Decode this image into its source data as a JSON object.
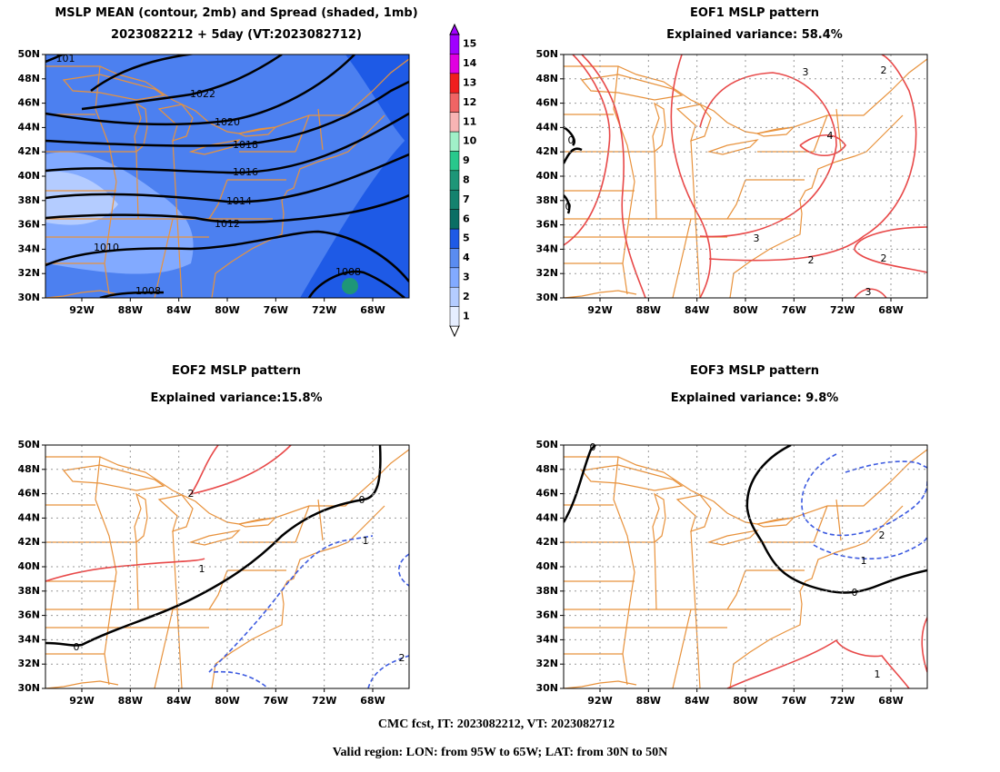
{
  "panels": [
    {
      "title": "MSLP MEAN (contour, 2mb) and Spread (shaded, 1mb)",
      "subtitle": "2023082212 + 5day (VT:2023082712)",
      "grid": false,
      "contour_labels": [
        "101",
        "1022",
        "1020",
        "1018",
        "1016",
        "1014",
        "1012",
        "1010",
        "1008",
        "1008"
      ]
    },
    {
      "title": "EOF1 MSLP pattern",
      "subtitle": "Explained variance: 58.4%",
      "grid": true,
      "contour_labels": [
        "0",
        "0",
        "3",
        "2",
        "4",
        "3",
        "2",
        "2",
        "3"
      ]
    },
    {
      "title": "EOF2 MSLP pattern",
      "subtitle": "Explained variance:15.8%",
      "grid": true,
      "contour_labels": [
        "2",
        "1",
        "0",
        "0",
        "1",
        "2"
      ]
    },
    {
      "title": "EOF3 MSLP pattern",
      "subtitle": "Explained variance: 9.8%",
      "grid": true,
      "contour_labels": [
        "0",
        "0",
        "2",
        "1",
        "1"
      ]
    }
  ],
  "lon_range": [
    -95,
    -65
  ],
  "lat_range": [
    30,
    50
  ],
  "lat_ticks": [
    {
      "value": 30,
      "label": "30N"
    },
    {
      "value": 32,
      "label": "32N"
    },
    {
      "value": 34,
      "label": "34N"
    },
    {
      "value": 36,
      "label": "36N"
    },
    {
      "value": 38,
      "label": "38N"
    },
    {
      "value": 40,
      "label": "40N"
    },
    {
      "value": 42,
      "label": "42N"
    },
    {
      "value": 44,
      "label": "44N"
    },
    {
      "value": 46,
      "label": "46N"
    },
    {
      "value": 48,
      "label": "48N"
    },
    {
      "value": 50,
      "label": "50N"
    }
  ],
  "lon_ticks": [
    {
      "value": -92,
      "label": "92W"
    },
    {
      "value": -88,
      "label": "88W"
    },
    {
      "value": -84,
      "label": "84W"
    },
    {
      "value": -80,
      "label": "80W"
    },
    {
      "value": -76,
      "label": "76W"
    },
    {
      "value": -72,
      "label": "72W"
    },
    {
      "value": -68,
      "label": "68W"
    }
  ],
  "colorbar": {
    "levels": [
      1,
      2,
      3,
      4,
      5,
      6,
      7,
      8,
      9,
      10,
      11,
      12,
      13,
      14,
      15
    ],
    "colors": [
      "#e6eeff",
      "#b4ccff",
      "#82aaff",
      "#5a8cf0",
      "#1e5ae6",
      "#0a6e64",
      "#14826e",
      "#1e9678",
      "#28c88c",
      "#a0f0c8",
      "#f8b4b4",
      "#f06464",
      "#f01e1e",
      "#e000e0",
      "#a000ff"
    ]
  },
  "footer": [
    "CMC fcst, IT: 2023082212, VT: 2023082712",
    "Valid region: LON: from 95W to 65W; LAT: from 30N to 50N"
  ]
}
